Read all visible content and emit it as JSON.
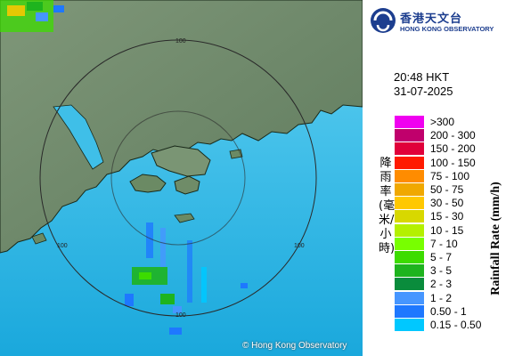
{
  "brand": {
    "name_zh": "香港天文台",
    "name_en": "HONG KONG OBSERVATORY",
    "logo_icon": "hko-logo-icon"
  },
  "timestamp": {
    "time": "20:48 HKT",
    "date": "31-07-2025"
  },
  "legend": {
    "title_zh": "降雨率(毫米/小時)",
    "title_en": "Rainfall Rate (mm/h)",
    "items": [
      {
        "label": ">300",
        "color": "#f000f0"
      },
      {
        "label": "200 - 300",
        "color": "#c0006c"
      },
      {
        "label": "150 - 200",
        "color": "#e0003a"
      },
      {
        "label": "100 - 150",
        "color": "#ff1a00"
      },
      {
        "label": "75 - 100",
        "color": "#ff8c00"
      },
      {
        "label": "50 - 75",
        "color": "#f0a800"
      },
      {
        "label": "30 - 50",
        "color": "#ffc800"
      },
      {
        "label": "15 - 30",
        "color": "#d8d800"
      },
      {
        "label": "10 - 15",
        "color": "#b4f000"
      },
      {
        "label": "7 - 10",
        "color": "#78ff00"
      },
      {
        "label": "5 - 7",
        "color": "#3cdc00"
      },
      {
        "label": "3 - 5",
        "color": "#1eb41e"
      },
      {
        "label": "2 - 3",
        "color": "#0a8c3c"
      },
      {
        "label": "1 - 2",
        "color": "#4696ff"
      },
      {
        "label": "0.50 - 1",
        "color": "#1e78ff"
      },
      {
        "label": "0.15 - 0.50",
        "color": "#00c8ff"
      }
    ]
  },
  "map": {
    "range_labels": [
      "100",
      "100",
      "100",
      "100"
    ],
    "copyright": "© Hong Kong Observatory",
    "sea_color": "#2fb6e6",
    "land_color": "#6f8a6a"
  }
}
